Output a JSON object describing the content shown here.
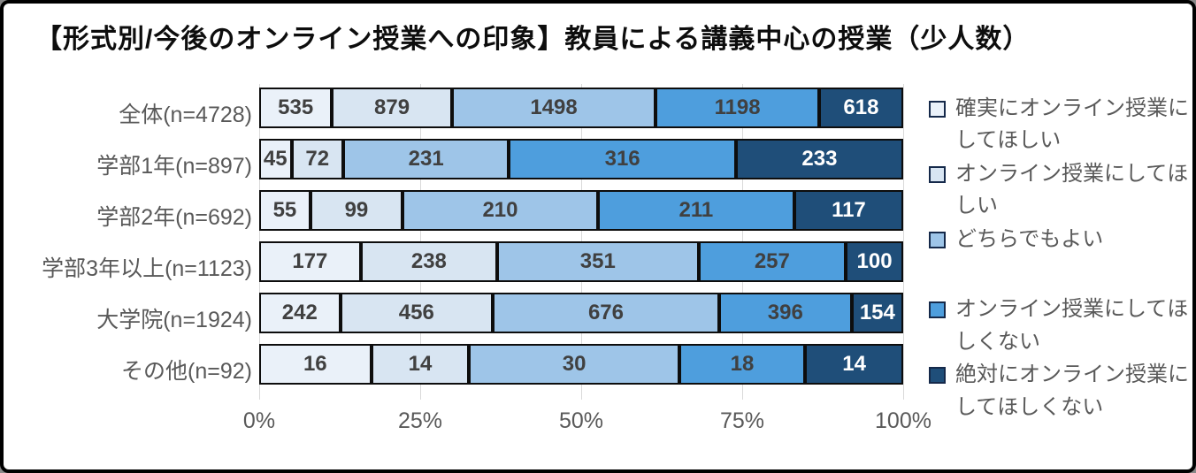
{
  "title": "【形式別/今後のオンライン授業への印象】教員による講義中心の授業（少人数）",
  "colors": {
    "background": "#ffffff",
    "frame_border": "#000000",
    "bar_border": "#0d0d0d",
    "gridline": "#d9d9d9",
    "axis_text": "#595959",
    "value_text_dark": "#404040",
    "value_text_light": "#ffffff",
    "legend_swatch_border": "#15294a"
  },
  "chart_data": {
    "type": "bar",
    "variant": "100%-stacked-horizontal",
    "title": "【形式別/今後のオンライン授業への印象】教員による講義中心の授業（少人数）",
    "categories": [
      "全体(n=4728)",
      "学部1年(n=897)",
      "学部2年(n=692)",
      "学部3年以上(n=1123)",
      "大学院(n=1924)",
      "その他(n=92)"
    ],
    "series": [
      {
        "name": "確実にオンライン授業にしてほしい",
        "color": "#eaf1f9",
        "dark_text": false,
        "values": [
          535,
          45,
          55,
          177,
          242,
          16
        ]
      },
      {
        "name": "オンライン授業にしてほしい",
        "color": "#d8e5f2",
        "dark_text": false,
        "values": [
          879,
          72,
          99,
          238,
          456,
          14
        ]
      },
      {
        "name": "どちらでもよい",
        "color": "#9ec5e8",
        "dark_text": false,
        "values": [
          1498,
          231,
          210,
          351,
          676,
          30
        ]
      },
      {
        "name": "オンライン授業にしてほしくない",
        "color": "#4e9edd",
        "dark_text": false,
        "values": [
          1198,
          316,
          211,
          257,
          396,
          18
        ]
      },
      {
        "name": "絶対にオンライン授業にしてほしくない",
        "color": "#1f4e79",
        "dark_text": true,
        "values": [
          618,
          233,
          117,
          100,
          154,
          14
        ]
      }
    ],
    "x_axis_ticks": [
      {
        "label": "0%",
        "value": 0
      },
      {
        "label": "25%",
        "value": 25
      },
      {
        "label": "50%",
        "value": 50
      },
      {
        "label": "75%",
        "value": 75
      },
      {
        "label": "100%",
        "value": 100
      }
    ],
    "xlim": [
      0,
      100
    ],
    "grid": true,
    "legend_position": "right"
  }
}
